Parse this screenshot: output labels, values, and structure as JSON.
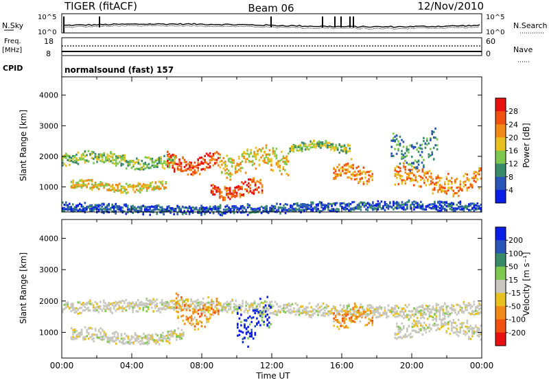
{
  "header": {
    "station": "TIGER (fitACF)",
    "beam": "Beam 06",
    "date": "12/Nov/2010"
  },
  "status_panels": {
    "nsky_label": "N.Sky",
    "nsky_ticks": [
      "10^5",
      "10^0"
    ],
    "nsearch_label": "N.Search",
    "nsearch_ticks": [
      "10^5",
      "10^0"
    ],
    "freq_label_1": "Freq.",
    "freq_label_2": "[MHz]",
    "freq_ticks": [
      "18",
      "8"
    ],
    "nave_label": "Nave",
    "nave_ticks": [
      "60",
      "0"
    ],
    "cpid_label": "CPID",
    "cpid_value": "normalsound (fast) 157"
  },
  "chart_data": [
    {
      "type": "heatmap",
      "name": "power",
      "ylabel": "Slant Range [km]",
      "ylim": [
        180,
        4600
      ],
      "y_ticks": [
        "1000",
        "2000",
        "3000",
        "4000"
      ],
      "colorbar_label": "Power [dB]",
      "colorbar_ticks": [
        "4",
        "8",
        "12",
        "16",
        "20",
        "24",
        "28"
      ],
      "colorbar_colors": [
        "#0a1ee6",
        "#2a55b8",
        "#3a8a6a",
        "#7ec850",
        "#e8c020",
        "#f08a18",
        "#f05010",
        "#e81010"
      ],
      "features": [
        {
          "t0": 0.0,
          "t1": 6.5,
          "r0": 1700,
          "r1": 2100,
          "level": 3
        },
        {
          "t0": 0.5,
          "t1": 6.0,
          "r0": 900,
          "r1": 1200,
          "level": 4
        },
        {
          "t0": 6.0,
          "t1": 9.0,
          "r0": 1500,
          "r1": 2100,
          "level": 6
        },
        {
          "t0": 8.5,
          "t1": 11.5,
          "r0": 700,
          "r1": 1200,
          "level": 6
        },
        {
          "t0": 9.0,
          "t1": 13.0,
          "r0": 1500,
          "r1": 2200,
          "level": 4
        },
        {
          "t0": 13.0,
          "t1": 16.5,
          "r0": 2200,
          "r1": 2500,
          "level": 3
        },
        {
          "t0": 15.5,
          "t1": 17.8,
          "r0": 1200,
          "r1": 1800,
          "level": 5
        },
        {
          "t0": 19.0,
          "t1": 24.0,
          "r0": 900,
          "r1": 1600,
          "level": 5
        },
        {
          "t0": 18.8,
          "t1": 21.5,
          "r0": 1800,
          "r1": 2700,
          "level": 2
        },
        {
          "t0": 0.0,
          "t1": 24.0,
          "r0": 200,
          "r1": 500,
          "level": 1
        }
      ]
    },
    {
      "type": "heatmap",
      "name": "velocity",
      "ylabel": "Slant Range [km]",
      "ylim": [
        180,
        4600
      ],
      "y_ticks": [
        "1000",
        "2000",
        "3000",
        "4000"
      ],
      "colorbar_label": "Velocity [m s⁻¹]",
      "colorbar_ticks": [
        "200",
        "100",
        "50",
        "15",
        "-15",
        "-50",
        "-100",
        "-200"
      ],
      "colorbar_colors": [
        "#0a1ee6",
        "#2a55b8",
        "#3a8a6a",
        "#7ec850",
        "#c8c8c0",
        "#e8c020",
        "#f08a18",
        "#f05010",
        "#e81010"
      ],
      "features": [
        {
          "t0": 0.0,
          "t1": 24.0,
          "r0": 1600,
          "r1": 2000,
          "class": "grey"
        },
        {
          "t0": 0.5,
          "t1": 7.0,
          "r0": 700,
          "r1": 1100,
          "class": "grey"
        },
        {
          "t0": 6.5,
          "t1": 9.0,
          "r0": 1200,
          "r1": 2100,
          "class": "orange"
        },
        {
          "t0": 10.0,
          "t1": 12.0,
          "r0": 900,
          "r1": 1900,
          "class": "blue"
        },
        {
          "t0": 15.5,
          "t1": 17.8,
          "r0": 1200,
          "r1": 1800,
          "class": "orange"
        },
        {
          "t0": 19.0,
          "t1": 24.0,
          "r0": 900,
          "r1": 1500,
          "class": "grey"
        }
      ]
    }
  ],
  "x_axis": {
    "label": "Time UT",
    "ticks": [
      "00:00",
      "04:00",
      "08:00",
      "12:00",
      "16:00",
      "20:00",
      "00:00"
    ]
  }
}
